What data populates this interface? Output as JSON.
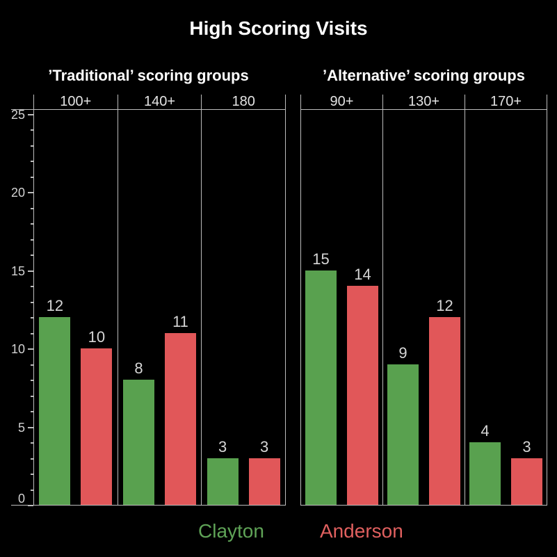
{
  "title": "High Scoring Visits",
  "colors": {
    "background": "#000000",
    "clayton_green": "#59a14f",
    "anderson_red": "#e15759",
    "grid_line": "#bdbdbd",
    "title_text": "#ffffff",
    "axis_text": "#d2d2d2",
    "bar_label_text": "#d6d6d6"
  },
  "y_axis": {
    "major_ticks": [
      0,
      5,
      10,
      15,
      20,
      25
    ],
    "minor_tick_every": 1,
    "max": 25
  },
  "legend": {
    "items": [
      {
        "label": "Clayton",
        "color": "#5fa357"
      },
      {
        "label": "Anderson",
        "color": "#e0605f"
      }
    ]
  },
  "chart_data": [
    {
      "type": "bar",
      "title": "’Traditional’ scoring groups",
      "categories": [
        "100+",
        "140+",
        "180"
      ],
      "series": [
        {
          "name": "Clayton",
          "color": "#59a14f",
          "values": [
            12,
            8,
            3
          ]
        },
        {
          "name": "Anderson",
          "color": "#e15759",
          "values": [
            10,
            11,
            3
          ]
        }
      ],
      "ylabel": "",
      "ylim": [
        0,
        25
      ],
      "grid": "column-dividers-only",
      "bar_value_labels": true
    },
    {
      "type": "bar",
      "title": "’Alternative’ scoring groups",
      "categories": [
        "90+",
        "130+",
        "170+"
      ],
      "series": [
        {
          "name": "Clayton",
          "color": "#59a14f",
          "values": [
            15,
            9,
            4
          ]
        },
        {
          "name": "Anderson",
          "color": "#e15759",
          "values": [
            14,
            12,
            3
          ]
        }
      ],
      "ylabel": "",
      "ylim": [
        0,
        25
      ],
      "grid": "column-dividers-only",
      "bar_value_labels": true
    }
  ]
}
